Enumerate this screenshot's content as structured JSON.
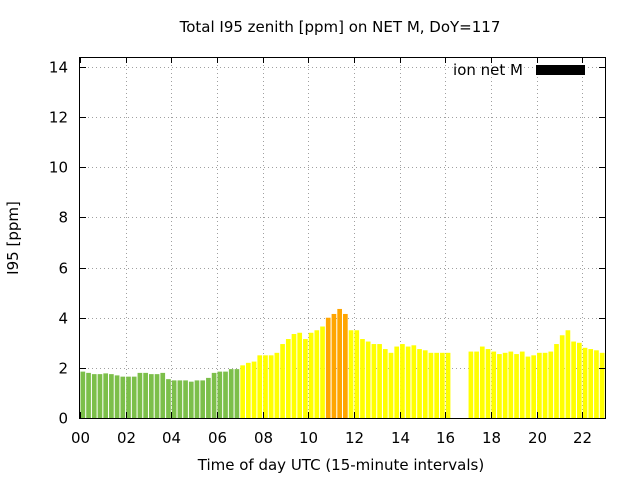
{
  "chart_data": {
    "type": "bar",
    "title": "Total I95 zenith [ppm] on NET M, DoY=117",
    "xlabel": "Time of day UTC (15-minute intervals)",
    "ylabel": "I95 [ppm]",
    "legend": {
      "label": "ion net M",
      "color": "#000000",
      "position": "top-right"
    },
    "grid": true,
    "xlim": [
      0,
      23
    ],
    "ylim": [
      0,
      14.4
    ],
    "x_ticks": [
      {
        "value": 0,
        "label": "00"
      },
      {
        "value": 2,
        "label": "02"
      },
      {
        "value": 4,
        "label": "04"
      },
      {
        "value": 6,
        "label": "06"
      },
      {
        "value": 8,
        "label": "08"
      },
      {
        "value": 10,
        "label": "10"
      },
      {
        "value": 12,
        "label": "12"
      },
      {
        "value": 14,
        "label": "14"
      },
      {
        "value": 16,
        "label": "16"
      },
      {
        "value": 18,
        "label": "18"
      },
      {
        "value": 20,
        "label": "20"
      },
      {
        "value": 22,
        "label": "22"
      }
    ],
    "y_ticks": [
      {
        "value": 0,
        "label": "0"
      },
      {
        "value": 2,
        "label": "2"
      },
      {
        "value": 4,
        "label": "4"
      },
      {
        "value": 6,
        "label": "6"
      },
      {
        "value": 8,
        "label": "8"
      },
      {
        "value": 10,
        "label": "10"
      },
      {
        "value": 12,
        "label": "12"
      },
      {
        "value": 14,
        "label": "14"
      }
    ],
    "color_thresholds": [
      {
        "max": 2.0,
        "color": "#7cbf4a"
      },
      {
        "max": 3.8,
        "color": "#ffff00"
      },
      {
        "max": 99,
        "color": "#ffa500"
      }
    ],
    "time_hours": [
      0.0,
      0.25,
      0.5,
      0.75,
      1.0,
      1.25,
      1.5,
      1.75,
      2.0,
      2.25,
      2.5,
      2.75,
      3.0,
      3.25,
      3.5,
      3.75,
      4.0,
      4.25,
      4.5,
      4.75,
      5.0,
      5.25,
      5.5,
      5.75,
      6.0,
      6.25,
      6.5,
      6.75,
      7.0,
      7.25,
      7.5,
      7.75,
      8.0,
      8.25,
      8.5,
      8.75,
      9.0,
      9.25,
      9.5,
      9.75,
      10.0,
      10.25,
      10.5,
      10.75,
      11.0,
      11.25,
      11.5,
      11.75,
      12.0,
      12.25,
      12.5,
      12.75,
      13.0,
      13.25,
      13.5,
      13.75,
      14.0,
      14.25,
      14.5,
      14.75,
      15.0,
      15.25,
      15.5,
      15.75,
      16.0,
      17.0,
      17.25,
      17.5,
      17.75,
      18.0,
      18.25,
      18.5,
      18.75,
      19.0,
      19.25,
      19.5,
      19.75,
      20.0,
      20.25,
      20.5,
      20.75,
      21.0,
      21.25,
      21.5,
      21.75,
      22.0,
      22.25,
      22.5,
      22.75
    ],
    "values": [
      1.85,
      1.8,
      1.75,
      1.75,
      1.78,
      1.75,
      1.7,
      1.65,
      1.65,
      1.65,
      1.8,
      1.8,
      1.75,
      1.75,
      1.8,
      1.55,
      1.5,
      1.5,
      1.5,
      1.45,
      1.5,
      1.5,
      1.6,
      1.8,
      1.85,
      1.85,
      1.95,
      1.95,
      2.1,
      2.2,
      2.25,
      2.5,
      2.5,
      2.5,
      2.6,
      2.95,
      3.15,
      3.35,
      3.4,
      3.15,
      3.4,
      3.5,
      3.65,
      4.0,
      4.15,
      4.35,
      4.15,
      3.5,
      3.5,
      3.15,
      3.05,
      2.95,
      2.95,
      2.75,
      2.6,
      2.85,
      2.95,
      2.85,
      2.9,
      2.75,
      2.7,
      2.6,
      2.6,
      2.6,
      2.6,
      2.65,
      2.65,
      2.85,
      2.75,
      2.65,
      2.55,
      2.6,
      2.65,
      2.55,
      2.65,
      2.45,
      2.5,
      2.6,
      2.6,
      2.65,
      2.95,
      3.3,
      3.5,
      3.05,
      3.0,
      2.8,
      2.75,
      2.7,
      2.6
    ]
  }
}
